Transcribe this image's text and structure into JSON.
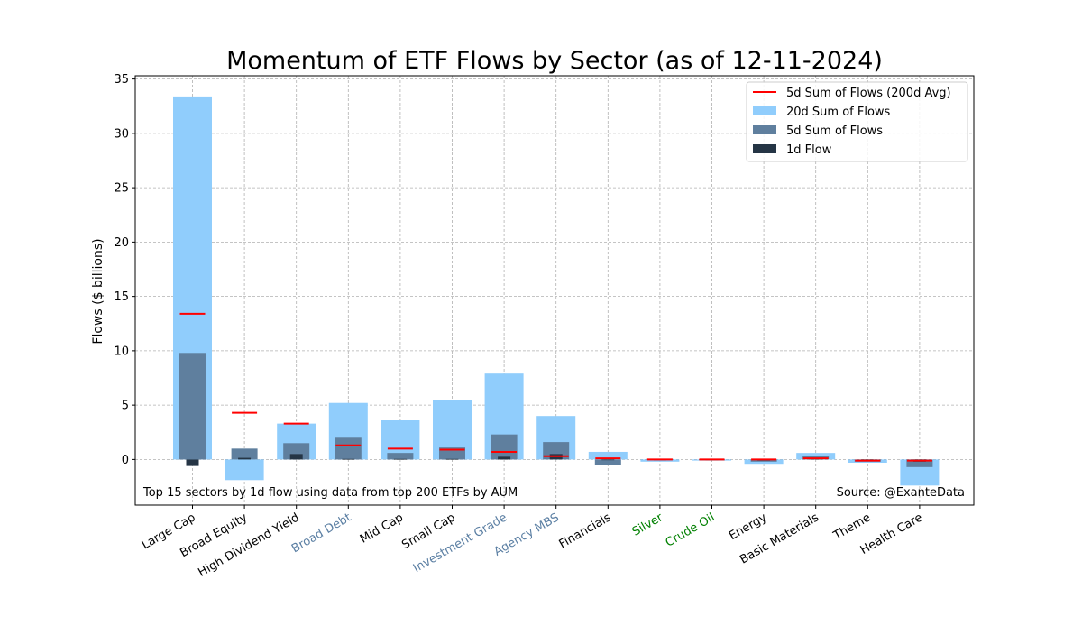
{
  "chart_data": {
    "type": "bar",
    "title": "Momentum of ETF Flows by Sector (as of 12-11-2024)",
    "xlabel": "",
    "ylabel": "Flows ($ billions)",
    "ylim": [
      -4.2,
      35.3
    ],
    "yticks": [
      0,
      5,
      10,
      15,
      20,
      25,
      30,
      35
    ],
    "grid": true,
    "legend_position": "top-right",
    "categories": [
      "Large Cap",
      "Broad Equity",
      "High Dividend Yield",
      "Broad Debt",
      "Mid Cap",
      "Small Cap",
      "Investment Grade",
      "Agency MBS",
      "Financials",
      "Silver",
      "Crude Oil",
      "Energy",
      "Basic Materials",
      "Theme",
      "Health Care"
    ],
    "category_colors": [
      "#000000",
      "#000000",
      "#000000",
      "#5b7fa3",
      "#000000",
      "#000000",
      "#5b7fa3",
      "#5b7fa3",
      "#000000",
      "#008000",
      "#008000",
      "#000000",
      "#000000",
      "#000000",
      "#000000"
    ],
    "series": [
      {
        "name": "20d Sum of Flows",
        "kind": "bar",
        "color": "#90cdfc",
        "values": [
          33.4,
          -1.9,
          3.3,
          5.2,
          3.6,
          5.5,
          7.9,
          4.0,
          0.7,
          -0.2,
          -0.1,
          -0.4,
          0.6,
          -0.3,
          -2.4
        ]
      },
      {
        "name": "5d Sum of Flows",
        "kind": "bar",
        "color": "#5f7f9e",
        "values": [
          9.8,
          1.0,
          1.5,
          2.0,
          0.6,
          1.1,
          2.3,
          1.6,
          -0.5,
          0.05,
          -0.05,
          -0.2,
          0.3,
          -0.2,
          -0.7
        ]
      },
      {
        "name": "1d Flow",
        "kind": "bar",
        "color": "#253545",
        "values": [
          -0.6,
          0.15,
          0.5,
          0.05,
          0.05,
          0.05,
          0.25,
          0.5,
          -0.05,
          -0.02,
          -0.05,
          -0.1,
          0.15,
          -0.1,
          -0.2
        ]
      },
      {
        "name": "5d Sum of Flows (200d Avg)",
        "kind": "marker",
        "color": "#ff0000",
        "values": [
          13.4,
          4.3,
          3.3,
          1.3,
          1.0,
          0.9,
          0.7,
          0.3,
          0.1,
          0.0,
          0.0,
          0.0,
          0.1,
          -0.1,
          -0.1
        ]
      }
    ],
    "legend": [
      "5d Sum of Flows (200d Avg)",
      "20d Sum of Flows",
      "5d Sum of Flows",
      "1d Flow"
    ],
    "annotations": {
      "bottom_left": "Top 15 sectors by 1d flow using data from top 200 ETFs by AUM",
      "bottom_right": "Source: @ExanteData"
    }
  }
}
